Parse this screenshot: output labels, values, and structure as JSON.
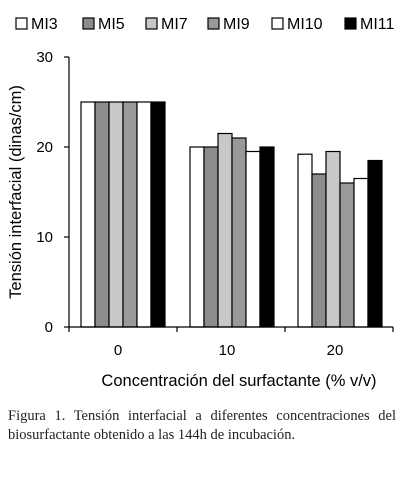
{
  "chart_data": {
    "type": "bar",
    "categories": [
      "0",
      "10",
      "20"
    ],
    "series": [
      {
        "name": "MI3",
        "color": "#ffffff",
        "values": [
          25,
          20,
          19.2
        ]
      },
      {
        "name": "MI5",
        "color": "#8c8c8c",
        "values": [
          25,
          20,
          17
        ]
      },
      {
        "name": "MI7",
        "color": "#c8c8c8",
        "values": [
          25,
          21.5,
          19.5
        ]
      },
      {
        "name": "MI9",
        "color": "#999999",
        "values": [
          25,
          21,
          16
        ]
      },
      {
        "name": "MI10",
        "color": "#ffffff",
        "values": [
          25,
          19.5,
          16.5
        ]
      },
      {
        "name": "MI11",
        "color": "#000000",
        "values": [
          25,
          20,
          18.5
        ]
      }
    ],
    "ylim": [
      0,
      30
    ],
    "yticks": [
      "0",
      "10",
      "20",
      "30"
    ],
    "xlabel": "Concentración del surfactante (% v/v)",
    "ylabel": "Tensión interfacial (dinas/cm)",
    "legend_position": "top",
    "grid": false
  },
  "caption": "Figura 1. Tensión interfacial a diferentes concentraciones del biosurfactante obtenido a las 144h de incubación."
}
